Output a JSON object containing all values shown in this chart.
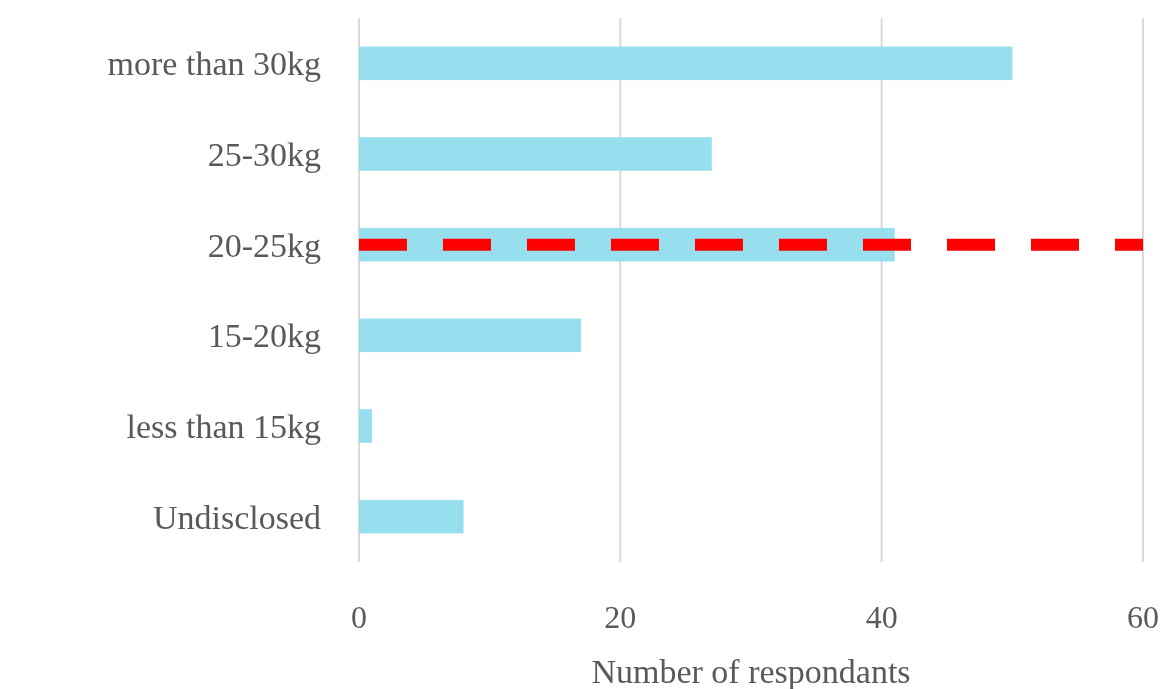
{
  "chart_data": {
    "type": "bar",
    "orientation": "horizontal",
    "xlabel": "Number of respondants",
    "categories": [
      "more than 30kg",
      "25-30kg",
      "20-25kg",
      "15-20kg",
      "less than 15kg",
      "Undisclosed"
    ],
    "values": [
      50,
      27,
      41,
      17,
      1,
      8
    ],
    "color": "#97dfee",
    "xlim": [
      0,
      60
    ],
    "xticks": [
      0,
      20,
      40,
      60
    ],
    "grid": "x",
    "ref_lines": [
      {
        "axis": "y",
        "value": "20-25kg",
        "color": "#ff0000",
        "line_style": "dashed"
      }
    ]
  }
}
